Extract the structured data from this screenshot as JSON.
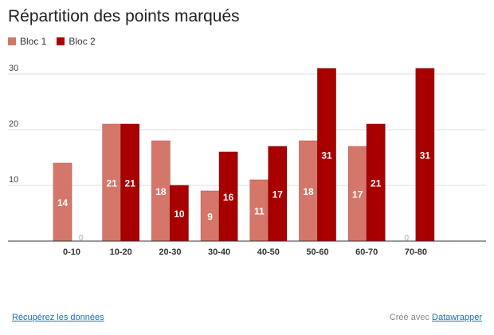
{
  "chart_data": {
    "type": "bar",
    "title": "Répartition des points marqués",
    "categories": [
      "0-10",
      "10-20",
      "20-30",
      "30-40",
      "40-50",
      "50-60",
      "60-70",
      "70-80"
    ],
    "series": [
      {
        "name": "Bloc 1",
        "color": "#d4776a",
        "values": [
          14,
          21,
          18,
          9,
          11,
          18,
          17,
          0
        ]
      },
      {
        "name": "Bloc 2",
        "color": "#a80000",
        "values": [
          0,
          21,
          10,
          16,
          17,
          31,
          21,
          31
        ]
      }
    ],
    "yticks": [
      10,
      20,
      30
    ],
    "ylim": [
      0,
      30
    ],
    "grid": true,
    "legend": "top-left"
  },
  "footer": {
    "download_link": "Récupérez les données",
    "credit_prefix": "Créé avec",
    "credit_link": "Datawrapper"
  }
}
